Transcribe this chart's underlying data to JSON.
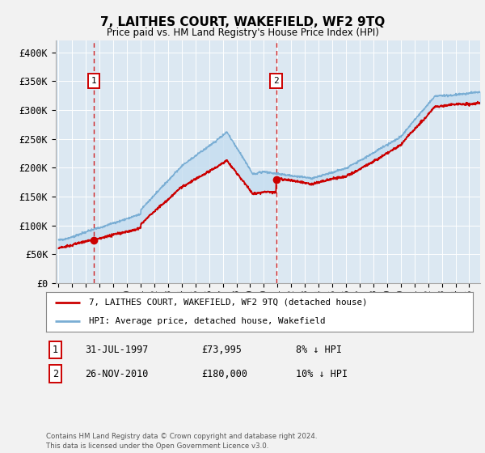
{
  "title": "7, LAITHES COURT, WAKEFIELD, WF2 9TQ",
  "subtitle": "Price paid vs. HM Land Registry's House Price Index (HPI)",
  "legend_line1": "7, LAITHES COURT, WAKEFIELD, WF2 9TQ (detached house)",
  "legend_line2": "HPI: Average price, detached house, Wakefield",
  "annotation1_date": "31-JUL-1997",
  "annotation1_price": 73995,
  "annotation1_hpi": "8% ↓ HPI",
  "annotation2_date": "26-NOV-2010",
  "annotation2_price": 180000,
  "annotation2_hpi": "10% ↓ HPI",
  "footnote": "Contains HM Land Registry data © Crown copyright and database right 2024.\nThis data is licensed under the Open Government Licence v3.0.",
  "ylim": [
    0,
    420000
  ],
  "yticks": [
    0,
    50000,
    100000,
    150000,
    200000,
    250000,
    300000,
    350000,
    400000
  ],
  "ytick_labels": [
    "£0",
    "£50K",
    "£100K",
    "£150K",
    "£200K",
    "£250K",
    "£300K",
    "£350K",
    "£400K"
  ],
  "bg_color": "#dce8f2",
  "fig_bg_color": "#f2f2f2",
  "red_color": "#cc0000",
  "blue_color": "#7aaed4",
  "fill_color": "#c5ddf0",
  "grid_color": "#ffffff",
  "ann_box_color": "#cc0000",
  "sale1_x": 1997.58,
  "sale1_y": 73995,
  "sale2_x": 2010.9,
  "sale2_y": 180000,
  "xmin": 1994.8,
  "xmax": 2025.8,
  "n_points": 1500
}
